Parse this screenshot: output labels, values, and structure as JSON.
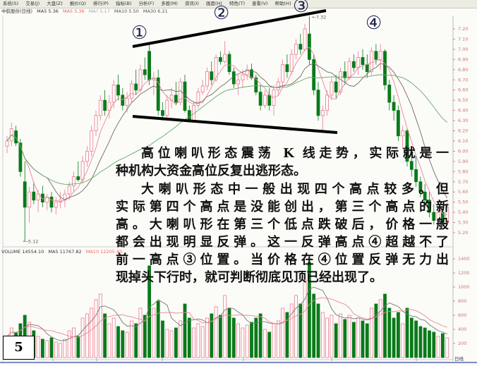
{
  "menu": [
    "系统(S)",
    "交易(J)",
    "大盘(Z)",
    "报价(Q)",
    "排行(P)",
    "指标(B)",
    "分析(F)",
    "多股(M)",
    "资讯(I)",
    "画面(H)",
    "特色(T)",
    "查看(V)",
    "帮助(H)"
  ],
  "price_legend": {
    "title": "中航股份(日线)",
    "ma5": "MA5 5.36",
    "ma5b": "MA5 5.36",
    "ma_other": "MA? 5.17",
    "ma10": "MA10 5.50",
    "ma30": "MA30 6.21"
  },
  "volume_legend": {
    "volume": "VOLUME 14554.10",
    "ma5": "MA5 11767.82",
    "ma10": "MA10 12205.40"
  },
  "colors": {
    "up": "#e87a8a",
    "down": "#0a7a1a",
    "ma5": "#e88898",
    "ma10": "#776666",
    "ma30": "#66aa66",
    "annotation": "#000000",
    "circle_number": "#1a2050"
  },
  "annotations": {
    "peak1": "①",
    "peak2": "②",
    "peak3": "③",
    "peak4": "④",
    "high_label": "7.32",
    "low_label": "5.12"
  },
  "text": {
    "lines": [
      "高位喇叭形态震荡 K 线走势，实际就是一",
      "种机构大资金高位反复出逃形态。",
      "大喇叭形态中一般出现四个高点较多。但",
      "实际第四个高点是没能创出，第三个高点的新",
      "高。大喇叭形在第三个低点跌破后，价格一般",
      "都会出现明显反弹。这一反弹高点④超越不了",
      "前一高点③位置。当价格在④位置反弹无力出",
      "现掉头下行时，就可判断彻底见顶已经出现了。"
    ]
  },
  "page_number": "5",
  "chart_data": {
    "type": "candlestick",
    "price_axis": {
      "ticks": [
        "7.20",
        "7.10",
        "7.00",
        "6.90",
        "6.80",
        "6.70",
        "6.60",
        "6.50",
        "6.40",
        "6.30",
        "6.20",
        "6.10",
        "6.00",
        "5.90",
        "5.80",
        "5.70",
        "5.60",
        "5.50",
        "5.40",
        "5.30",
        "5.20"
      ],
      "range": [
        5.2,
        7.2
      ]
    },
    "volume_axis": {
      "ticks": [
        "1400",
        "1200",
        "1000",
        "800",
        "600",
        "400",
        "200"
      ],
      "range": [
        0,
        1400
      ]
    },
    "bottom_label": "日线",
    "candles_ohlcv": [
      [
        6.05,
        6.15,
        5.98,
        6.1,
        300
      ],
      [
        6.1,
        6.28,
        6.05,
        6.22,
        420
      ],
      [
        6.2,
        6.25,
        6.05,
        6.08,
        350
      ],
      [
        6.08,
        6.12,
        5.75,
        5.8,
        480
      ],
      [
        5.7,
        5.9,
        5.12,
        5.45,
        600
      ],
      [
        5.45,
        5.65,
        5.3,
        5.6,
        500
      ],
      [
        5.6,
        5.7,
        5.48,
        5.52,
        380
      ],
      [
        5.52,
        5.62,
        5.4,
        5.58,
        300
      ],
      [
        5.58,
        5.66,
        5.45,
        5.5,
        260
      ],
      [
        5.5,
        5.58,
        5.42,
        5.55,
        240
      ],
      [
        5.55,
        5.6,
        5.4,
        5.45,
        280
      ],
      [
        5.45,
        5.55,
        5.38,
        5.5,
        220
      ],
      [
        5.5,
        5.6,
        5.44,
        5.52,
        200
      ],
      [
        5.52,
        5.62,
        5.45,
        5.58,
        260
      ],
      [
        5.58,
        5.7,
        5.52,
        5.66,
        380
      ],
      [
        5.66,
        5.8,
        5.6,
        5.75,
        420
      ],
      [
        5.75,
        5.9,
        5.7,
        5.72,
        300
      ],
      [
        5.72,
        5.95,
        5.68,
        5.9,
        560
      ],
      [
        5.9,
        6.05,
        5.85,
        6.0,
        620
      ],
      [
        6.0,
        6.25,
        5.95,
        6.2,
        700
      ],
      [
        6.2,
        6.4,
        6.15,
        6.35,
        820
      ],
      [
        6.35,
        6.55,
        6.3,
        6.5,
        900
      ],
      [
        6.5,
        6.6,
        6.35,
        6.4,
        620
      ],
      [
        6.4,
        6.55,
        6.32,
        6.48,
        480
      ],
      [
        6.48,
        6.7,
        6.42,
        6.65,
        560
      ],
      [
        6.65,
        6.75,
        6.5,
        6.55,
        440
      ],
      [
        6.55,
        6.62,
        6.4,
        6.45,
        380
      ],
      [
        6.45,
        6.58,
        6.38,
        6.52,
        360
      ],
      [
        6.52,
        6.7,
        6.48,
        6.66,
        520
      ],
      [
        6.66,
        6.8,
        6.55,
        6.6,
        480
      ],
      [
        6.6,
        6.85,
        6.58,
        6.8,
        700
      ],
      [
        6.8,
        6.92,
        6.7,
        6.75,
        600
      ],
      [
        6.98,
        7.05,
        6.65,
        6.7,
        1300
      ],
      [
        6.7,
        6.78,
        6.55,
        6.72,
        700
      ],
      [
        6.72,
        6.8,
        6.35,
        6.4,
        800
      ],
      [
        6.4,
        6.48,
        6.3,
        6.35,
        520
      ],
      [
        6.35,
        6.55,
        6.32,
        6.5,
        400
      ],
      [
        6.5,
        6.62,
        6.42,
        6.55,
        380
      ],
      [
        6.55,
        6.68,
        6.45,
        6.48,
        420
      ],
      [
        6.48,
        6.72,
        6.45,
        6.68,
        520
      ],
      [
        6.68,
        6.75,
        6.38,
        6.4,
        760
      ],
      [
        6.4,
        6.45,
        6.28,
        6.3,
        560
      ],
      [
        6.3,
        6.48,
        6.28,
        6.45,
        420
      ],
      [
        6.45,
        6.62,
        6.42,
        6.58,
        480
      ],
      [
        6.58,
        6.7,
        6.55,
        6.64,
        440
      ],
      [
        6.64,
        6.82,
        6.6,
        6.78,
        560
      ],
      [
        6.78,
        6.88,
        6.65,
        6.7,
        620
      ],
      [
        6.7,
        6.95,
        6.68,
        6.92,
        720
      ],
      [
        6.92,
        6.98,
        6.85,
        6.88,
        600
      ],
      [
        6.88,
        7.08,
        6.86,
        6.95,
        880
      ],
      [
        6.95,
        6.98,
        6.75,
        6.78,
        700
      ],
      [
        6.78,
        6.82,
        6.62,
        6.66,
        560
      ],
      [
        6.66,
        6.75,
        6.55,
        6.7,
        480
      ],
      [
        6.7,
        6.8,
        6.62,
        6.75,
        420
      ],
      [
        6.75,
        6.85,
        6.7,
        6.8,
        460
      ],
      [
        6.8,
        6.86,
        6.7,
        6.72,
        500
      ],
      [
        6.72,
        6.75,
        6.55,
        6.58,
        560
      ],
      [
        6.58,
        6.65,
        6.4,
        6.45,
        620
      ],
      [
        6.45,
        6.6,
        6.42,
        6.55,
        400
      ],
      [
        6.55,
        6.62,
        6.4,
        6.45,
        360
      ],
      [
        6.45,
        6.65,
        6.35,
        6.6,
        480
      ],
      [
        6.6,
        6.72,
        6.55,
        6.68,
        520
      ],
      [
        6.68,
        6.9,
        6.62,
        6.85,
        700
      ],
      [
        6.85,
        6.95,
        6.72,
        6.78,
        640
      ],
      [
        6.78,
        7.0,
        6.75,
        6.95,
        760
      ],
      [
        6.95,
        7.1,
        6.9,
        7.05,
        880
      ],
      [
        7.05,
        7.15,
        6.95,
        7.0,
        760
      ],
      [
        7.0,
        7.25,
        6.98,
        7.2,
        1100
      ],
      [
        7.15,
        7.32,
        6.85,
        6.9,
        1350
      ],
      [
        6.9,
        6.95,
        6.55,
        6.6,
        900
      ],
      [
        6.6,
        6.68,
        6.3,
        6.35,
        760
      ],
      [
        6.35,
        6.45,
        6.18,
        6.4,
        640
      ],
      [
        6.4,
        6.6,
        6.35,
        6.55,
        560
      ],
      [
        6.55,
        6.72,
        6.5,
        6.68,
        600
      ],
      [
        6.68,
        6.75,
        6.52,
        6.58,
        480
      ],
      [
        6.58,
        6.82,
        6.55,
        6.78,
        620
      ],
      [
        6.78,
        6.88,
        6.65,
        6.72,
        540
      ],
      [
        6.72,
        6.92,
        6.7,
        6.88,
        600
      ],
      [
        6.88,
        6.95,
        6.78,
        6.82,
        500
      ],
      [
        6.82,
        6.98,
        6.75,
        6.92,
        560
      ],
      [
        6.92,
        7.0,
        6.8,
        6.85,
        520
      ],
      [
        6.85,
        6.95,
        6.72,
        6.78,
        480
      ],
      [
        6.78,
        7.02,
        6.75,
        6.98,
        700
      ],
      [
        6.98,
        7.05,
        6.85,
        6.9,
        760
      ],
      [
        6.9,
        7.05,
        6.8,
        6.98,
        820
      ],
      [
        6.98,
        7.0,
        6.6,
        6.65,
        900
      ],
      [
        6.65,
        6.7,
        6.4,
        6.48,
        700
      ],
      [
        6.48,
        6.55,
        6.3,
        6.4,
        560
      ],
      [
        6.4,
        6.45,
        6.1,
        6.15,
        640
      ],
      [
        6.15,
        6.25,
        6.02,
        6.2,
        480
      ],
      [
        6.2,
        6.22,
        5.85,
        5.9,
        700
      ],
      [
        5.9,
        5.98,
        5.75,
        5.82,
        560
      ],
      [
        5.82,
        5.95,
        5.65,
        5.7,
        520
      ],
      [
        5.7,
        5.75,
        5.55,
        5.6,
        440
      ],
      [
        5.6,
        5.68,
        5.45,
        5.52,
        420
      ],
      [
        5.52,
        5.6,
        5.35,
        5.4,
        380
      ],
      [
        5.4,
        5.48,
        5.28,
        5.32,
        360
      ],
      [
        5.32,
        5.45,
        5.28,
        5.4,
        300
      ],
      [
        5.4,
        5.42,
        5.26,
        5.3,
        340
      ],
      [
        5.3,
        5.5,
        5.28,
        5.45,
        280
      ]
    ]
  }
}
